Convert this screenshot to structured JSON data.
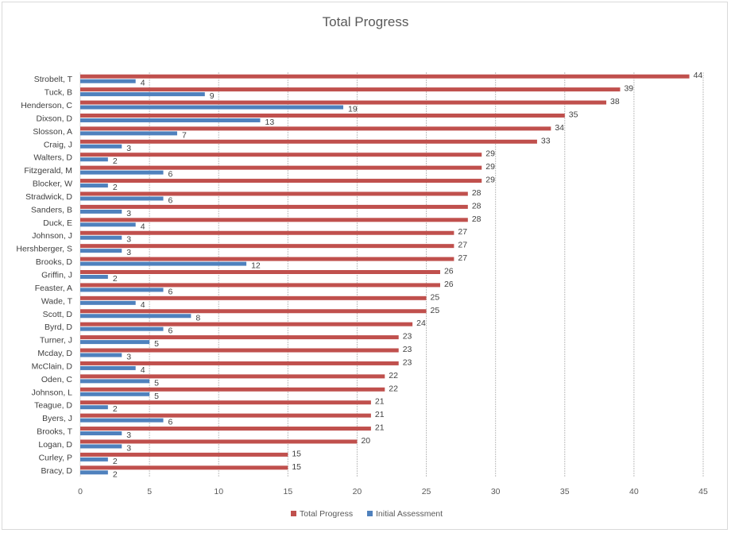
{
  "colors": {
    "total": "#C0504D",
    "initial": "#4F81BD",
    "grid": "#bfbfbf",
    "text": "#404040"
  },
  "chart_data": {
    "type": "bar",
    "orientation": "horizontal",
    "title": "Total Progress",
    "xlabel": "",
    "ylabel": "",
    "xlim": [
      0,
      45
    ],
    "xticks": [
      0,
      5,
      10,
      15,
      20,
      25,
      30,
      35,
      40,
      45
    ],
    "grid": true,
    "legend_position": "bottom",
    "categories": [
      "Strobelt, T",
      "Tuck, B",
      "Henderson, C",
      "Dixson, D",
      "Slosson, A",
      "Craig, J",
      "Walters, D",
      "Fitzgerald, M",
      "Blocker, W",
      "Stradwick, D",
      "Sanders, B",
      "Duck, E",
      "Johnson, J",
      "Hershberger, S",
      "Brooks, D",
      "Griffin, J",
      "Feaster, A",
      "Wade, T",
      "Scott, D",
      "Byrd, D",
      "Turner, J",
      "Mcday, D",
      "McClain, D",
      "Oden, C",
      "Johnson, L",
      "Teague, D",
      "Byers, J",
      "Brooks, T",
      "Logan, D",
      "Curley, P",
      "Bracy, D"
    ],
    "series": [
      {
        "name": "Total Progress",
        "values": [
          44,
          39,
          38,
          35,
          34,
          33,
          29,
          29,
          29,
          28,
          28,
          28,
          27,
          27,
          27,
          26,
          26,
          25,
          25,
          24,
          23,
          23,
          23,
          22,
          22,
          21,
          21,
          21,
          20,
          15,
          15
        ]
      },
      {
        "name": "Initial Assessment",
        "values": [
          4,
          9,
          19,
          13,
          7,
          3,
          2,
          6,
          2,
          6,
          3,
          4,
          3,
          3,
          12,
          2,
          6,
          4,
          8,
          6,
          5,
          3,
          4,
          5,
          5,
          2,
          6,
          3,
          3,
          2,
          2
        ]
      }
    ]
  }
}
